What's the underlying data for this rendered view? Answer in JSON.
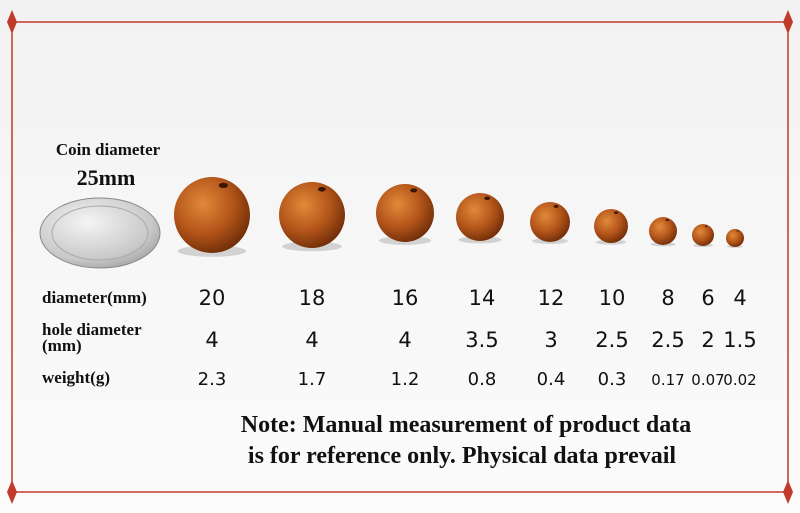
{
  "coin": {
    "label": "Coin diameter",
    "size": "25mm"
  },
  "table": {
    "rows": [
      {
        "label": [
          "diameter(mm)"
        ],
        "values": [
          20,
          18,
          16,
          14,
          12,
          10,
          8,
          6,
          4
        ]
      },
      {
        "label": [
          "hole diameter",
          "(mm)"
        ],
        "values": [
          4,
          4,
          4,
          3.5,
          3,
          2.5,
          2.5,
          2,
          1.5
        ]
      },
      {
        "label": [
          "weight(g)"
        ],
        "values": [
          2.3,
          1.7,
          1.2,
          0.8,
          0.4,
          0.3,
          0.17,
          0.07,
          0.02
        ]
      }
    ]
  },
  "note": [
    "Note: Manual measurement of product data",
    "is for reference only. Physical data prevail"
  ]
}
